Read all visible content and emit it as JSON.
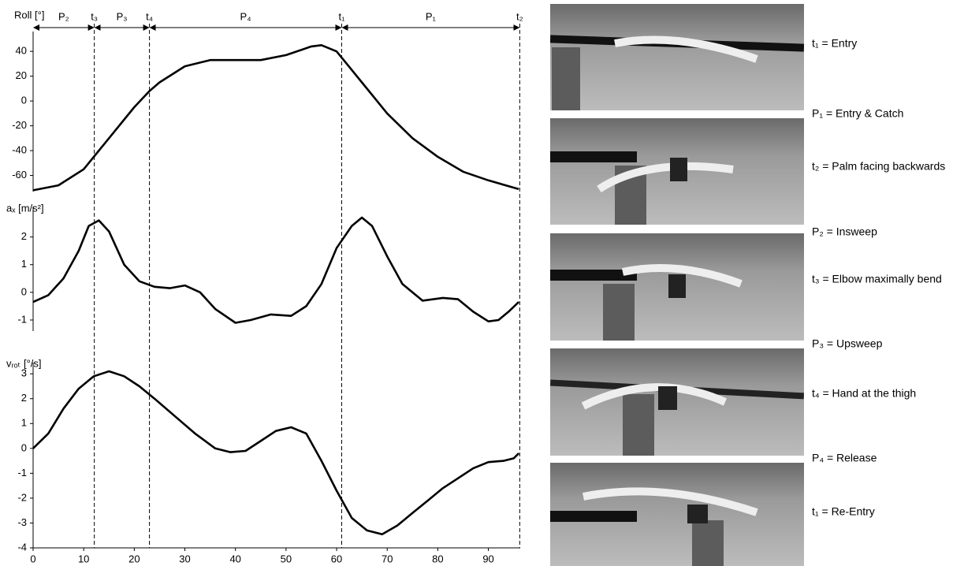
{
  "chart_data": [
    {
      "type": "line",
      "y_label": "Roll [°]",
      "color": "#000000",
      "x": [
        0,
        5,
        10,
        12,
        15,
        20,
        23,
        25,
        30,
        35,
        40,
        45,
        50,
        55,
        57,
        60,
        62,
        65,
        70,
        75,
        80,
        85,
        90,
        96
      ],
      "values": [
        -72,
        -68,
        -55,
        -45,
        -30,
        -5,
        8,
        15,
        28,
        33,
        33,
        33,
        37,
        44,
        45,
        40,
        30,
        15,
        -10,
        -30,
        -45,
        -57,
        -64,
        -71
      ],
      "xlim": [
        0,
        96.3
      ],
      "ylim": [
        -73,
        56
      ],
      "yticks": [
        -60,
        -40,
        -20,
        0,
        20,
        40
      ],
      "markers": [
        {
          "x": 12.1,
          "label": "t₃"
        },
        {
          "x": 23,
          "label": "t₄"
        },
        {
          "x": 61,
          "label": "t₁"
        },
        {
          "x": 96.2,
          "label": "t₂"
        }
      ],
      "phases": [
        {
          "label": "P₂",
          "start": 0,
          "end": 12.1
        },
        {
          "label": "P₃",
          "start": 12.1,
          "end": 23
        },
        {
          "label": "P₄",
          "start": 23,
          "end": 61
        },
        {
          "label": "P₁",
          "start": 61,
          "end": 96.2
        }
      ]
    },
    {
      "type": "line",
      "y_label": "aₓ [m/s²]",
      "color": "#000000",
      "x": [
        0,
        3,
        6,
        9,
        11,
        13,
        15,
        18,
        21,
        24,
        27,
        30,
        33,
        36,
        40,
        43,
        47,
        51,
        54,
        57,
        60,
        63,
        65,
        67,
        70,
        73,
        77,
        81,
        84,
        87,
        90,
        92,
        94,
        96
      ],
      "values": [
        -0.35,
        -0.1,
        0.5,
        1.5,
        2.4,
        2.6,
        2.2,
        1.0,
        0.4,
        0.2,
        0.15,
        0.25,
        0,
        -0.6,
        -1.1,
        -1.0,
        -0.8,
        -0.85,
        -0.5,
        0.3,
        1.6,
        2.4,
        2.7,
        2.4,
        1.3,
        0.3,
        -0.3,
        -0.2,
        -0.25,
        -0.7,
        -1.05,
        -1.0,
        -0.7,
        -0.35
      ],
      "xlim": [
        0,
        96.3
      ],
      "ylim": [
        -1.4,
        3.1
      ],
      "yticks": [
        -1,
        0,
        1,
        2
      ]
    },
    {
      "type": "line",
      "y_label": "vᵣₒₜ [°/s]",
      "color": "#000000",
      "x": [
        0,
        3,
        6,
        9,
        12,
        15,
        18,
        21,
        24,
        28,
        32,
        36,
        39,
        42,
        45,
        48,
        51,
        54,
        57,
        60,
        63,
        66,
        69,
        72,
        75,
        78,
        81,
        84,
        87,
        90,
        93,
        95,
        96
      ],
      "values": [
        0,
        0.6,
        1.6,
        2.4,
        2.9,
        3.1,
        2.9,
        2.5,
        2.0,
        1.3,
        0.6,
        0,
        -0.15,
        -0.1,
        0.3,
        0.7,
        0.85,
        0.6,
        -0.5,
        -1.7,
        -2.8,
        -3.3,
        -3.45,
        -3.1,
        -2.6,
        -2.1,
        -1.6,
        -1.2,
        -0.8,
        -0.55,
        -0.5,
        -0.4,
        -0.2
      ],
      "xlim": [
        0,
        96.3
      ],
      "ylim": [
        -4,
        3.45
      ],
      "yticks": [
        -4,
        -3,
        -2,
        -1,
        0,
        1,
        2,
        3
      ],
      "xticks": [
        0,
        10,
        20,
        30,
        40,
        50,
        60,
        70,
        80,
        90
      ]
    }
  ],
  "descriptions": [
    "t₁ = Entry",
    "P₁ = Entry & Catch",
    "t₂ = Palm facing backwards",
    "P₂ = Insweep",
    "t₃ = Elbow maximally bend",
    "P₃ = Upsweep",
    "t₄ = Hand at the thigh",
    "P₄ = Release",
    "t₁ = Re-Entry"
  ]
}
